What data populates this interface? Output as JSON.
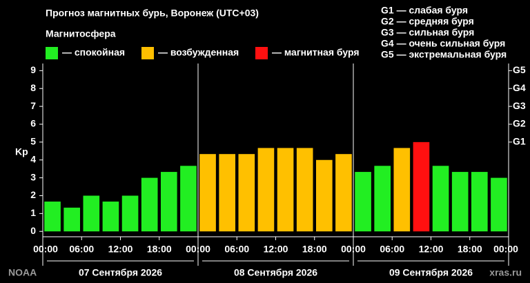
{
  "chart_data": {
    "type": "bar",
    "title": "Прогноз магнитных бурь, Воронеж (UTC+03)",
    "legend_title": "Магнитосфера",
    "ylabel": "Kp",
    "x": [
      0,
      3,
      6,
      9,
      12,
      15,
      18,
      21,
      24,
      27,
      30,
      33,
      36,
      39,
      42,
      45,
      48,
      51,
      54,
      57,
      60,
      63,
      66,
      69
    ],
    "bar_width": 3,
    "series": [
      {
        "name": "— спокойная",
        "color": "#22ee22",
        "values": [
          1.67,
          1.33,
          2,
          1.67,
          2,
          3,
          3.33,
          3.67,
          null,
          null,
          null,
          null,
          null,
          null,
          null,
          null,
          3.33,
          3.67,
          null,
          null,
          3.67,
          3.33,
          3.33,
          3
        ]
      },
      {
        "name": "— возбужденная",
        "color": "#ffc000",
        "values": [
          null,
          null,
          null,
          null,
          null,
          null,
          null,
          null,
          4.33,
          4.33,
          4.33,
          4.67,
          4.67,
          4.67,
          4,
          4.33,
          null,
          null,
          4.67,
          null,
          null,
          null,
          null,
          null
        ]
      },
      {
        "name": "— магнитная буря",
        "color": "#ff1010",
        "values": [
          null,
          null,
          null,
          null,
          null,
          null,
          null,
          null,
          null,
          null,
          null,
          null,
          null,
          null,
          null,
          null,
          null,
          null,
          null,
          5,
          null,
          null,
          null,
          null
        ]
      }
    ],
    "xlim": [
      0,
      72
    ],
    "xticks": [
      {
        "value": 0,
        "label": "00:00"
      },
      {
        "value": 6,
        "label": "06:00"
      },
      {
        "value": 12,
        "label": "12:00"
      },
      {
        "value": 18,
        "label": "18:00"
      },
      {
        "value": 24,
        "label": "00:00"
      },
      {
        "value": 30,
        "label": "06:00"
      },
      {
        "value": 36,
        "label": "12:00"
      },
      {
        "value": 42,
        "label": "18:00"
      },
      {
        "value": 48,
        "label": "00:00"
      },
      {
        "value": 54,
        "label": "06:00"
      },
      {
        "value": 60,
        "label": "12:00"
      },
      {
        "value": 66,
        "label": "18:00"
      },
      {
        "value": 72,
        "label": "00:00"
      }
    ],
    "ylim": [
      -0.3,
      9.4
    ],
    "yticks": [
      0,
      1,
      2,
      3,
      4,
      5,
      6,
      7,
      8,
      9
    ],
    "y2lim": [
      -0.3,
      9.4
    ],
    "y2ticks": [
      {
        "value": 5,
        "label": "G1"
      },
      {
        "value": 6,
        "label": "G2"
      },
      {
        "value": 7,
        "label": "G3"
      },
      {
        "value": 8,
        "label": "G4"
      },
      {
        "value": 9,
        "label": "G5"
      }
    ],
    "day_groups": [
      {
        "label": "07 Сентября 2026",
        "range": [
          0,
          24
        ]
      },
      {
        "label": "08 Сентября 2026",
        "range": [
          24,
          48
        ]
      },
      {
        "label": "09 Сентября 2026",
        "range": [
          48,
          72
        ]
      }
    ],
    "storm_scale": [
      "G1 — слабая буря",
      "G2 — средняя буря",
      "G3 — сильная буря",
      "G4 — очень сильная буря",
      "G5 — экстремальная буря"
    ],
    "source": "NOAA",
    "site": "xras.ru"
  }
}
